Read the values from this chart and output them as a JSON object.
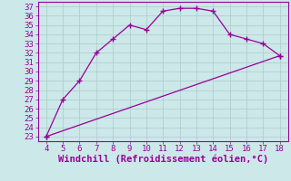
{
  "xlabel": "Windchill (Refroidissement éolien,°C)",
  "background_color": "#cce8e8",
  "line_color": "#990099",
  "upper_line": {
    "x": [
      4,
      5,
      6,
      7,
      8,
      9,
      10,
      11,
      12,
      13,
      14,
      15,
      16,
      17,
      18
    ],
    "y": [
      23,
      27,
      29,
      32,
      33.5,
      35,
      34.5,
      36.5,
      36.8,
      36.8,
      36.5,
      34,
      33.5,
      33,
      31.7
    ]
  },
  "lower_line": {
    "x": [
      4,
      18
    ],
    "y": [
      23,
      31.7
    ]
  },
  "xlim": [
    3.5,
    18.5
  ],
  "ylim": [
    22.5,
    37.5
  ],
  "xticks": [
    4,
    5,
    6,
    7,
    8,
    9,
    10,
    11,
    12,
    13,
    14,
    15,
    16,
    17,
    18
  ],
  "yticks": [
    23,
    24,
    25,
    26,
    27,
    28,
    29,
    30,
    31,
    32,
    33,
    34,
    35,
    36,
    37
  ],
  "grid_color": "#aacccc",
  "marker": "+",
  "markersize": 5,
  "markeredgewidth": 1.0,
  "linewidth": 0.9,
  "xlabel_fontsize": 7.5,
  "tick_fontsize": 6.5,
  "tick_color": "#990099",
  "axis_color": "#990099",
  "spine_linewidth": 0.8
}
